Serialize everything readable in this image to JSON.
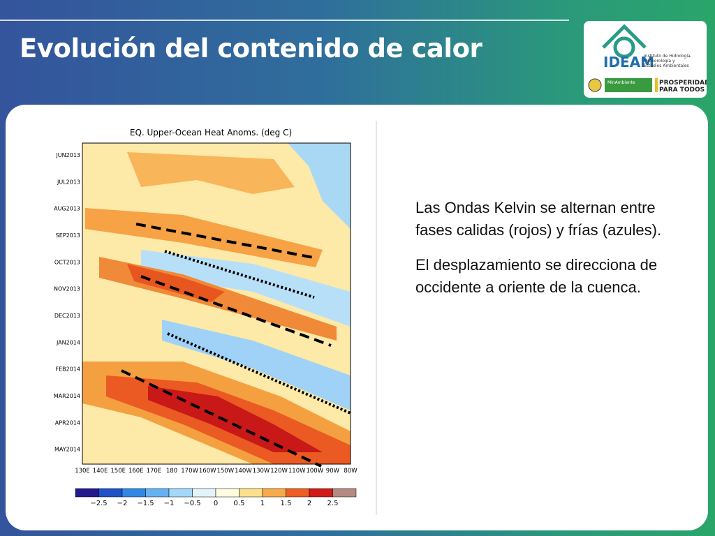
{
  "header": {
    "title": "Evolución del contenido de calor"
  },
  "logo": {
    "name": "IDEAM",
    "institute": [
      "Instituto de Hidrología,",
      "Meteorología y",
      "Estudios Ambientales"
    ],
    "ministry": "MinAmbiente",
    "slogan": [
      "PROSPERIDAD",
      "PARA TODOS"
    ]
  },
  "figure": {
    "title": "EQ. Upper-Ocean Heat Anoms. (deg C)",
    "y_labels": [
      "JUN2013",
      "JUL2013",
      "AUG2013",
      "SEP2013",
      "OCT2013",
      "NOV2013",
      "DEC2013",
      "JAN2014",
      "FEB2014",
      "MAR2014",
      "APR2014",
      "MAY2014"
    ],
    "x_labels": [
      "130E",
      "140E",
      "150E",
      "160E",
      "170E",
      "180",
      "170W",
      "160W",
      "150W",
      "140W",
      "130W",
      "120W",
      "110W",
      "100W",
      "90W",
      "80W"
    ],
    "colorbar": {
      "colors": [
        "#241a8e",
        "#1f52c9",
        "#3088e6",
        "#62b2f4",
        "#a3d8fa",
        "#e2f4fb",
        "#fffbe0",
        "#fde08c",
        "#f8aa48",
        "#ee5f24",
        "#d01b18",
        "#b58a80"
      ],
      "labels": [
        "−2.5",
        "−2",
        "−1.5",
        "−1",
        "−0.5",
        "0",
        "0.5",
        "1",
        "1.5",
        "2",
        "2.5"
      ]
    }
  },
  "text": {
    "paragraphs": [
      "Las Ondas Kelvin se alternan entre fases calidas (rojos) y frías (azules).",
      "El desplazamiento se direcciona de occidente a oriente de la cuenca."
    ]
  }
}
